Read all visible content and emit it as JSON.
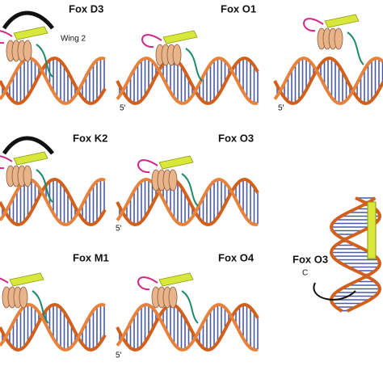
{
  "labels": [
    "Fox D3",
    "Wing 2",
    "Fox O1",
    "5′",
    "5′",
    "Fox K2",
    "Fox O3",
    "5′",
    "Fox M1",
    "Fox O4",
    "5′",
    "Fox O3",
    "C"
  ]
}
